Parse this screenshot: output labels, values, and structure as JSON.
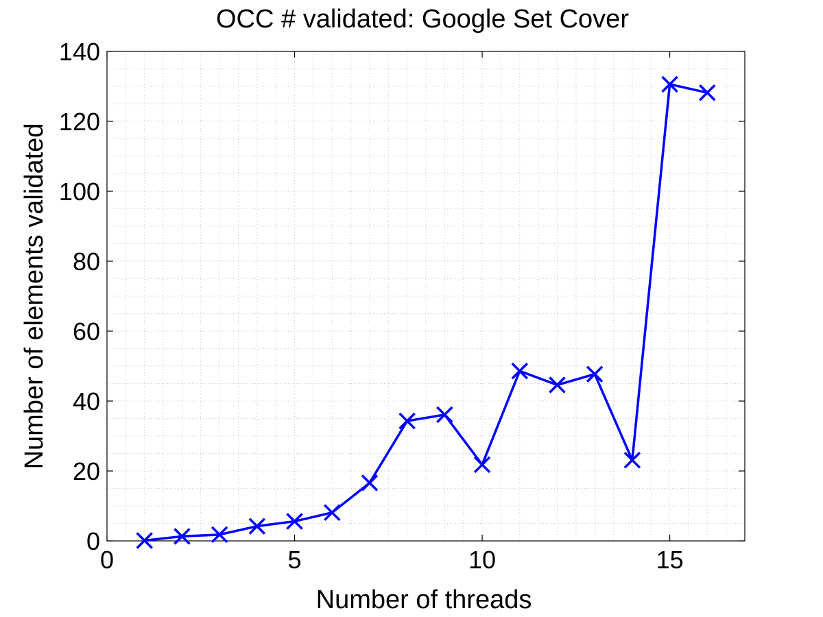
{
  "chart_data": {
    "type": "line",
    "title": "OCC # validated: Google Set Cover",
    "xlabel": "Number of threads",
    "ylabel": "Number of elements validated",
    "xlim": [
      0,
      17
    ],
    "ylim": [
      0,
      140
    ],
    "xticks": [
      0,
      5,
      10,
      15
    ],
    "yticks": [
      0,
      20,
      40,
      60,
      80,
      100,
      120,
      140
    ],
    "xtick_labels": [
      "0",
      "5",
      "10",
      "15"
    ],
    "ytick_labels": [
      "0",
      "20",
      "40",
      "60",
      "80",
      "100",
      "120",
      "140"
    ],
    "grid": true,
    "minor_grid": true,
    "series": [
      {
        "marker": "x-marker",
        "color": "#0000ff",
        "x": [
          1,
          2,
          3,
          4,
          5,
          6,
          7,
          8,
          9,
          10,
          11,
          12,
          13,
          14,
          15,
          16
        ],
        "y": [
          0.1,
          1.3,
          1.8,
          4.2,
          5.6,
          8.1,
          16.6,
          34.3,
          36.1,
          21.8,
          48.6,
          44.6,
          47.7,
          23.1,
          130.6,
          128.2
        ]
      }
    ]
  }
}
